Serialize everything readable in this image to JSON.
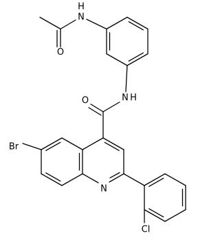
{
  "atoms": [
    "H",
    "N",
    "O",
    "N",
    "H",
    "O",
    "Br",
    "N",
    "Cl"
  ]
}
